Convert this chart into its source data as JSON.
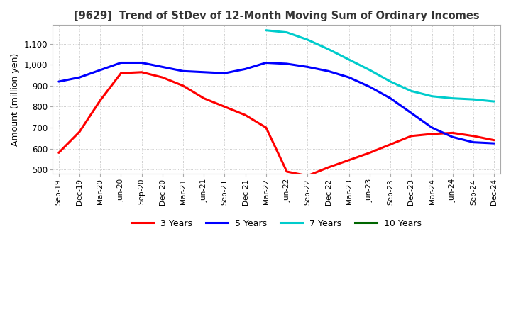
{
  "title": "[9629]  Trend of StDev of 12-Month Moving Sum of Ordinary Incomes",
  "ylabel": "Amount (million yen)",
  "ylim": [
    480,
    1190
  ],
  "yticks": [
    500,
    600,
    700,
    800,
    900,
    1000,
    1100
  ],
  "background_color": "#ffffff",
  "grid_color": "#bbbbbb",
  "legend_labels": [
    "3 Years",
    "5 Years",
    "7 Years",
    "10 Years"
  ],
  "legend_colors": [
    "#ff0000",
    "#0000ff",
    "#00cccc",
    "#006600"
  ],
  "x_labels": [
    "Sep-19",
    "Dec-19",
    "Mar-20",
    "Jun-20",
    "Sep-20",
    "Dec-20",
    "Mar-21",
    "Jun-21",
    "Sep-21",
    "Dec-21",
    "Mar-22",
    "Jun-22",
    "Sep-22",
    "Dec-22",
    "Mar-23",
    "Jun-23",
    "Sep-23",
    "Dec-23",
    "Mar-24",
    "Jun-24",
    "Sep-24",
    "Dec-24"
  ],
  "series_3y": [
    580,
    680,
    830,
    960,
    965,
    940,
    900,
    840,
    800,
    760,
    700,
    490,
    470,
    510,
    545,
    580,
    620,
    660,
    670,
    675,
    660,
    640
  ],
  "series_5y": [
    920,
    940,
    975,
    1010,
    1010,
    990,
    970,
    965,
    960,
    980,
    1010,
    1005,
    990,
    970,
    940,
    895,
    840,
    770,
    700,
    655,
    630,
    625
  ],
  "series_7y": [
    null,
    null,
    null,
    null,
    null,
    null,
    null,
    null,
    null,
    null,
    1165,
    1155,
    1120,
    1075,
    1025,
    975,
    920,
    875,
    850,
    840,
    835,
    825
  ],
  "series_10y": [
    null,
    null,
    null,
    null,
    null,
    null,
    null,
    null,
    null,
    null,
    null,
    null,
    null,
    null,
    null,
    null,
    null,
    null,
    null,
    null,
    null,
    null
  ]
}
